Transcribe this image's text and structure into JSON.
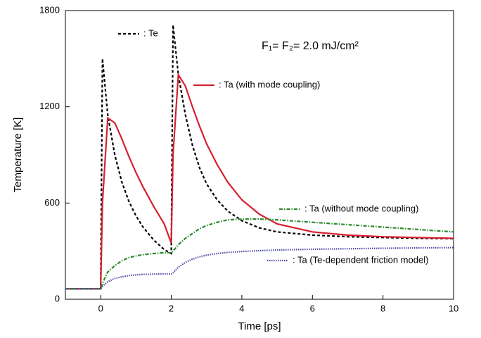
{
  "chart_data": {
    "type": "line",
    "xlabel": "Time [ps]",
    "ylabel": "Temperature [K]",
    "annotation": "F₁= F₂= 2.0 mJ/cm²",
    "x": [
      -1,
      -0.5,
      0,
      0.05,
      0.2,
      0.4,
      0.6,
      0.8,
      1.0,
      1.2,
      1.5,
      1.8,
      2.0,
      2.05,
      2.2,
      2.4,
      2.6,
      2.8,
      3.0,
      3.3,
      3.6,
      4.0,
      4.5,
      5,
      6,
      7,
      8,
      9,
      10
    ],
    "xlim": [
      -1,
      10
    ],
    "xticks": [
      0,
      2,
      4,
      6,
      8,
      10
    ],
    "ylim": [
      0,
      1800
    ],
    "yticks": [
      0,
      600,
      1200,
      1800
    ],
    "series": [
      {
        "name": ": Te",
        "color": "#000000",
        "dash": "4,3",
        "values": [
          65,
          65,
          65,
          1500,
          1150,
          900,
          730,
          610,
          520,
          450,
          370,
          310,
          285,
          1710,
          1400,
          1150,
          960,
          820,
          720,
          620,
          550,
          490,
          445,
          420,
          400,
          390,
          385,
          380,
          378
        ]
      },
      {
        "name": ": Ta (with mode coupling)",
        "color": "#d62030",
        "dash": "none",
        "values": [
          65,
          65,
          65,
          600,
          1130,
          1100,
          1000,
          890,
          790,
          700,
          580,
          470,
          350,
          900,
          1400,
          1330,
          1200,
          1080,
          970,
          840,
          730,
          620,
          530,
          470,
          420,
          400,
          390,
          385,
          380
        ]
      },
      {
        "name": ": Ta (without mode coupling)",
        "color": "#2a8a2a",
        "dash": "5,2,1.5,2",
        "values": [
          65,
          65,
          65,
          100,
          170,
          210,
          240,
          260,
          270,
          278,
          285,
          290,
          290,
          300,
          340,
          380,
          410,
          440,
          460,
          480,
          495,
          500,
          500,
          495,
          480,
          465,
          450,
          435,
          420
        ]
      },
      {
        "name": ": Ta (Te-dependent friction model)",
        "color": "#4b4ba8",
        "dash": "1.5,1.5",
        "values": [
          65,
          65,
          65,
          80,
          110,
          130,
          140,
          148,
          152,
          155,
          157,
          158,
          158,
          165,
          200,
          230,
          250,
          265,
          275,
          285,
          292,
          298,
          303,
          307,
          312,
          315,
          318,
          320,
          322
        ]
      }
    ]
  }
}
